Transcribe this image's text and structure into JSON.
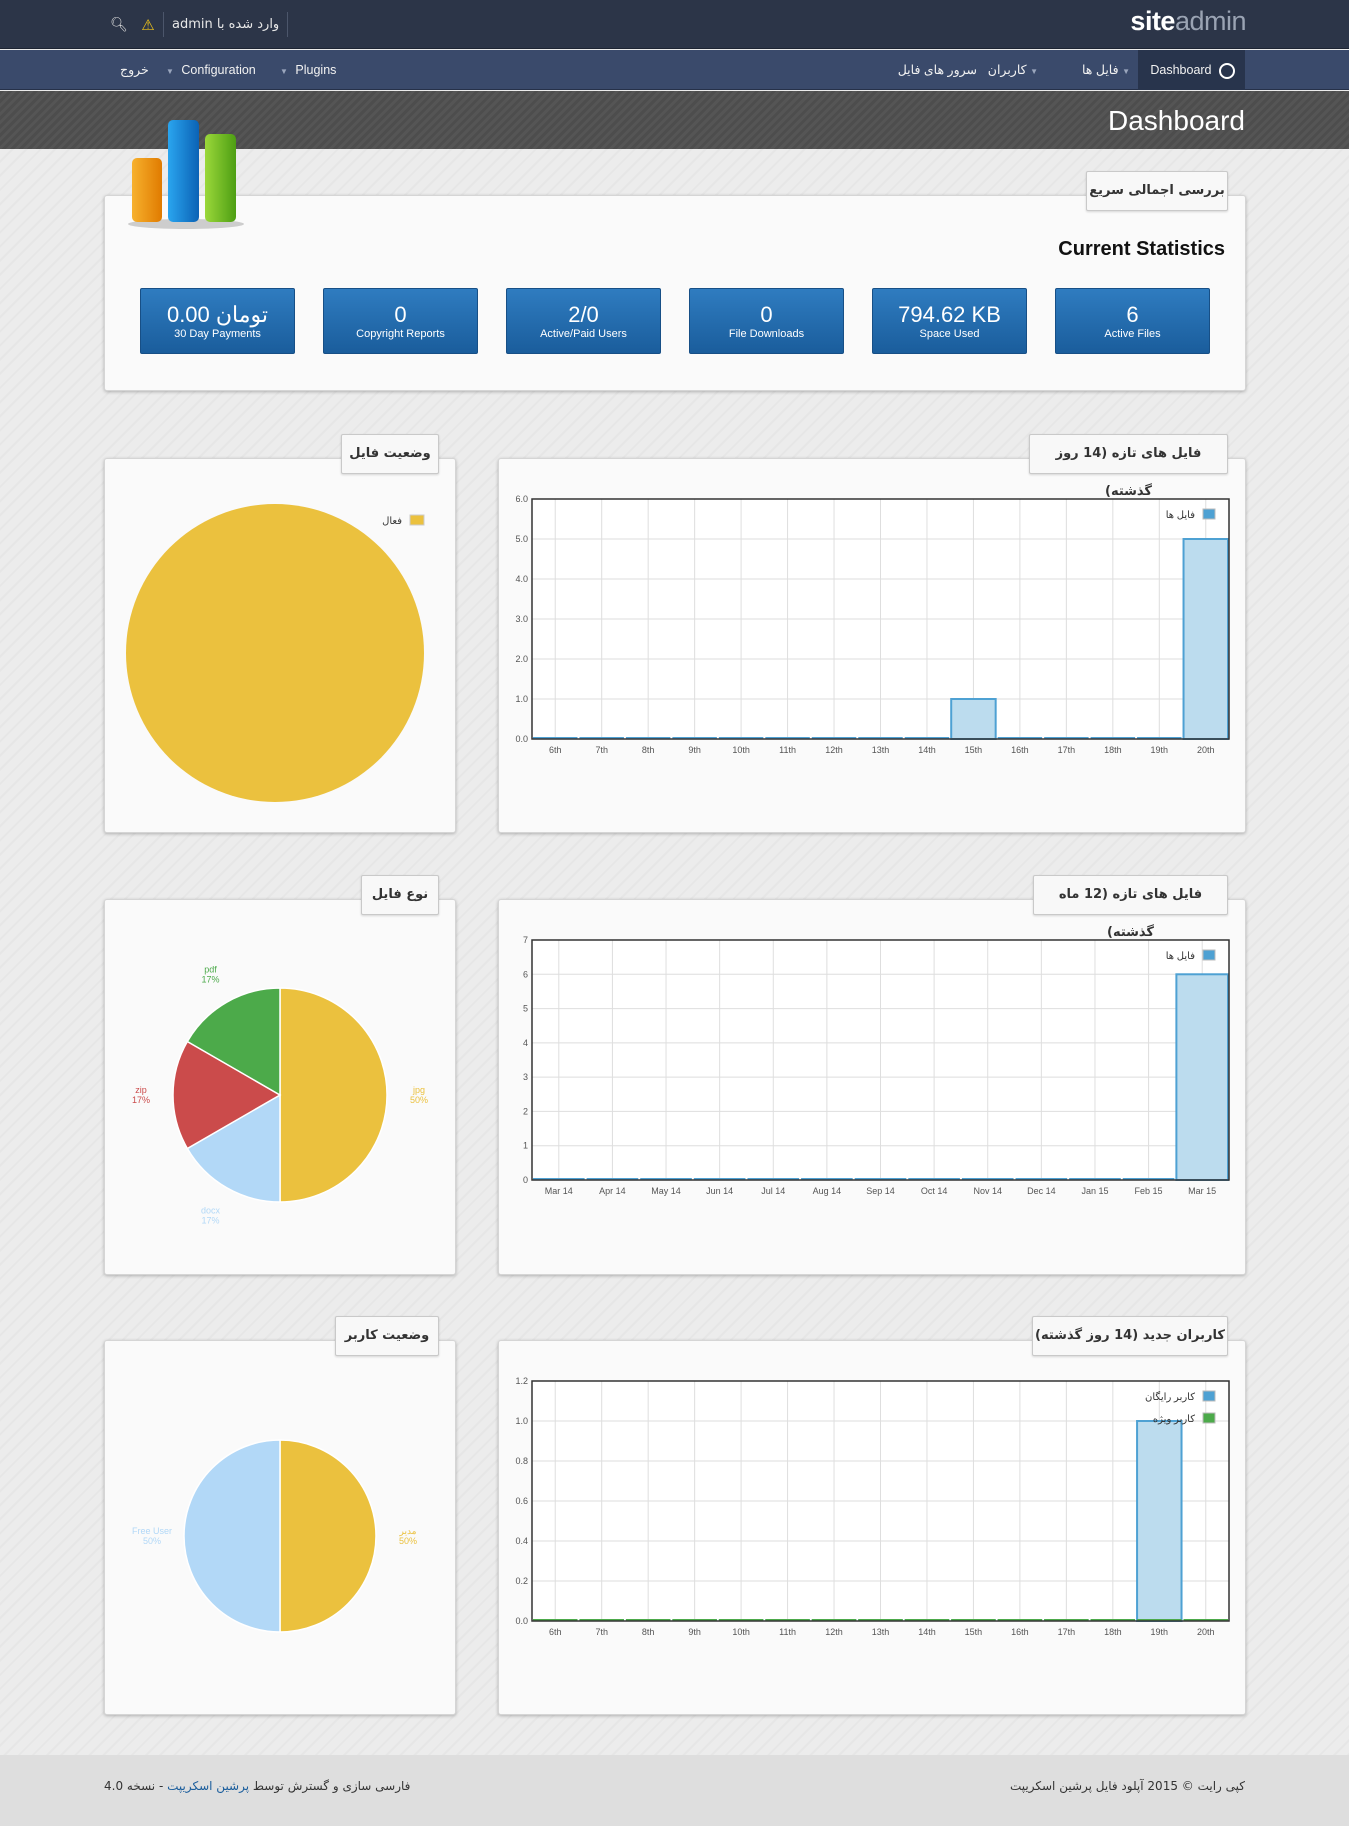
{
  "brand": {
    "part1": "site",
    "part2": "admin"
  },
  "user": {
    "logged_in_as": "وارد شده با",
    "username": "admin"
  },
  "nav": {
    "dashboard": "Dashboard",
    "files": "فایل ها",
    "users": "کاربران",
    "file_servers": "سرور های فایل",
    "plugins": "Plugins",
    "configuration": "Configuration",
    "logout": "خروج"
  },
  "page_title": "Dashboard",
  "overview": {
    "tab": "بررسی اجمالی سریع",
    "heading": "Current Statistics",
    "stats": [
      {
        "value": "6",
        "label": "Active Files"
      },
      {
        "value": "794.62 KB",
        "label": "Space Used"
      },
      {
        "value": "0",
        "label": "File Downloads"
      },
      {
        "value": "2/0",
        "label": "Active/Paid Users"
      },
      {
        "value": "0",
        "label": "Copyright Reports"
      },
      {
        "value": "0.00 تومان",
        "label": "30 Day Payments"
      }
    ]
  },
  "panels": {
    "file_status_tab": "وضعیت فایل",
    "files_14d_tab": "فایل های تازه (14 روز گذشته)",
    "file_type_tab": "نوع فایل",
    "files_12m_tab": "فایل های تازه (12 ماه گذشته)",
    "user_status_tab": "وضعیت کاربر",
    "users_14d_tab": "کاربران جدید (14 روز گذشته)"
  },
  "chart_data": [
    {
      "type": "bar",
      "categories": [
        "6th",
        "7th",
        "8th",
        "9th",
        "10th",
        "11th",
        "12th",
        "13th",
        "14th",
        "15th",
        "16th",
        "17th",
        "18th",
        "19th",
        "20th"
      ],
      "series": [
        {
          "name": "فایل ها",
          "values": [
            0,
            0,
            0,
            0,
            0,
            0,
            0,
            0,
            0,
            1,
            0,
            0,
            0,
            0,
            5
          ],
          "color": "#4ea1d3"
        }
      ],
      "ylim": [
        0,
        6
      ],
      "yticks": [
        "0.0",
        "1.0",
        "2.0",
        "3.0",
        "4.0",
        "5.0",
        "6.0"
      ],
      "grid": true,
      "legend": "top-right"
    },
    {
      "type": "bar",
      "categories": [
        "Mar 14",
        "Apr 14",
        "May 14",
        "Jun 14",
        "Jul 14",
        "Aug 14",
        "Sep 14",
        "Oct 14",
        "Nov 14",
        "Dec 14",
        "Jan 15",
        "Feb 15",
        "Mar 15"
      ],
      "series": [
        {
          "name": "فایل ها",
          "values": [
            0,
            0,
            0,
            0,
            0,
            0,
            0,
            0,
            0,
            0,
            0,
            0,
            6
          ],
          "color": "#4ea1d3"
        }
      ],
      "ylim": [
        0,
        7
      ],
      "yticks": [
        "0",
        "1",
        "2",
        "3",
        "4",
        "5",
        "6",
        "7"
      ],
      "grid": true,
      "legend": "top-right"
    },
    {
      "type": "bar",
      "categories": [
        "6th",
        "7th",
        "8th",
        "9th",
        "10th",
        "11th",
        "12th",
        "13th",
        "14th",
        "15th",
        "16th",
        "17th",
        "18th",
        "19th",
        "20th"
      ],
      "series": [
        {
          "name": "کاربر رایگان",
          "values": [
            0,
            0,
            0,
            0,
            0,
            0,
            0,
            0,
            0,
            0,
            0,
            0,
            0,
            1,
            0
          ],
          "color": "#4ea1d3"
        },
        {
          "name": "کاربر ویژه",
          "values": [
            0,
            0,
            0,
            0,
            0,
            0,
            0,
            0,
            0,
            0,
            0,
            0,
            0,
            0,
            0
          ],
          "color": "#4caa4a"
        }
      ],
      "ylim": [
        0,
        1.2
      ],
      "yticks": [
        "0.0",
        "0.2",
        "0.4",
        "0.6",
        "0.8",
        "1.0",
        "1.2"
      ],
      "grid": true,
      "legend": "top-right"
    },
    {
      "type": "pie",
      "slices": [
        {
          "label": "فعال",
          "value": 100,
          "color": "#ebc13e"
        }
      ],
      "legend": "top-right"
    },
    {
      "type": "pie",
      "slices": [
        {
          "label": "jpg",
          "pct": "50%",
          "value": 50,
          "color": "#ebc13e"
        },
        {
          "label": "docx",
          "pct": "17%",
          "value": 16.67,
          "color": "#b2d8f7"
        },
        {
          "label": "zip",
          "pct": "17%",
          "value": 16.67,
          "color": "#cb4b4b"
        },
        {
          "label": "pdf",
          "pct": "17%",
          "value": 16.67,
          "color": "#4caa4a"
        }
      ]
    },
    {
      "type": "pie",
      "slices": [
        {
          "label": "مدیر",
          "pct": "50%",
          "value": 50,
          "color": "#ebc13e"
        },
        {
          "label": "Free User",
          "pct": "50%",
          "value": 50,
          "color": "#b2d8f7"
        }
      ]
    }
  ],
  "footer": {
    "copyright": "کپی رایت © 2015 آپلود فایل پرشین اسکریپت",
    "credit_prefix": "فارسی سازی و گسترش توسط",
    "credit_link": "پرشین اسکریپت",
    "version": "- نسخه 4.0"
  }
}
